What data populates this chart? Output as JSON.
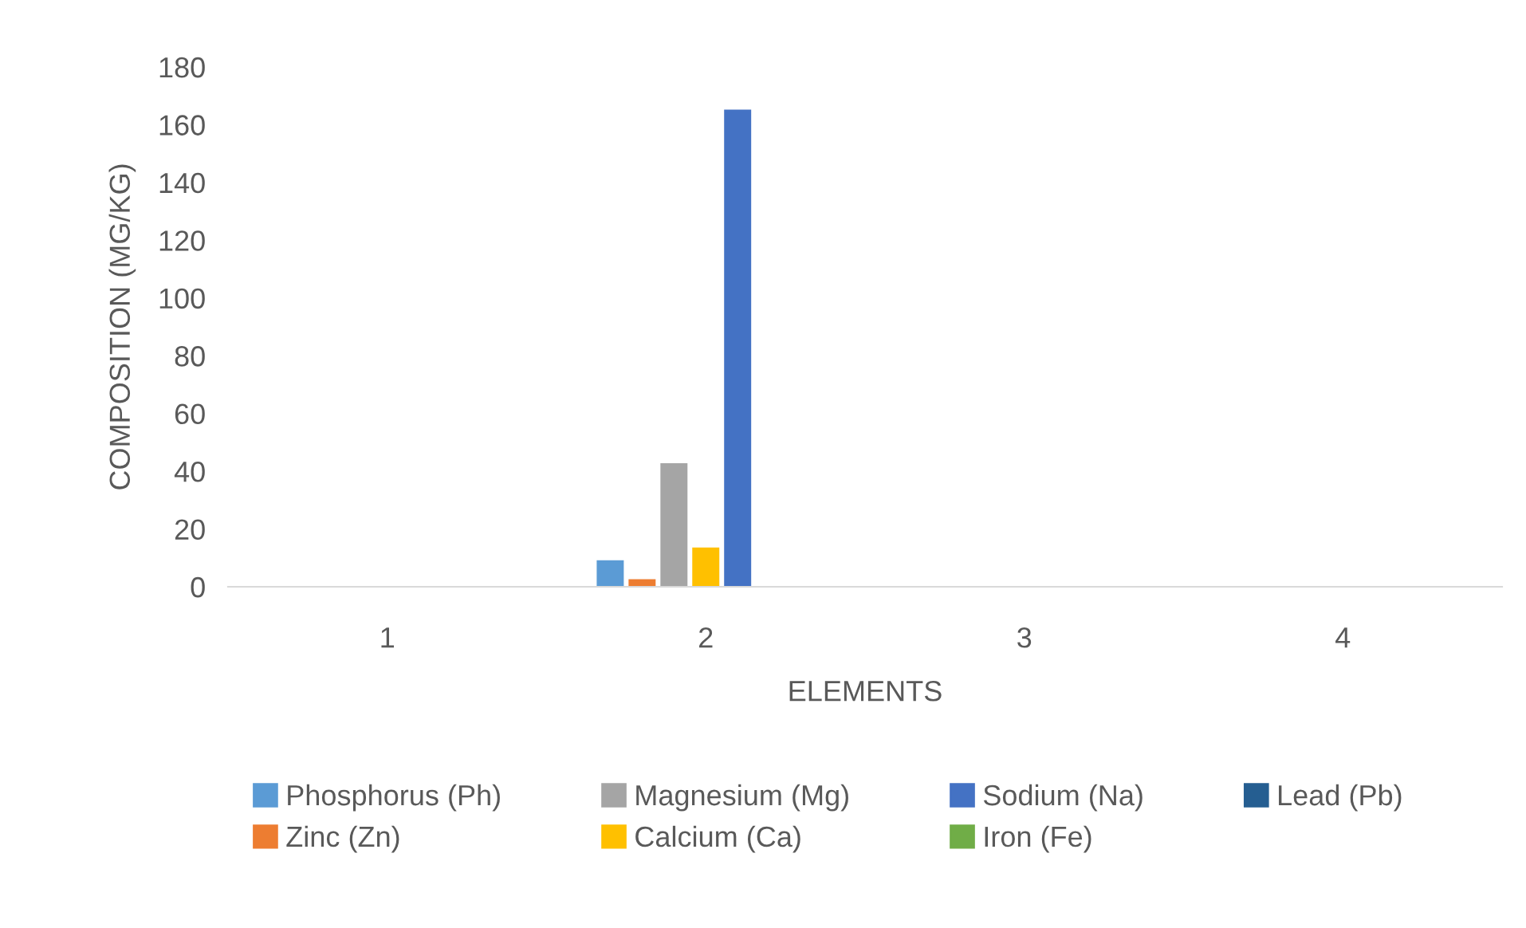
{
  "chart_data": {
    "type": "bar",
    "xlabel": "ELEMENTS",
    "ylabel": "COMPOSITION (MG/KG)",
    "categories": [
      "1",
      "2",
      "3",
      "4"
    ],
    "series": [
      {
        "name": "Phosphorus (Ph)",
        "color": "#5b9bd5",
        "values": [
          0,
          9.2,
          0,
          0
        ]
      },
      {
        "name": "Zinc (Zn)",
        "color": "#ed7d31",
        "values": [
          0,
          2.6,
          0,
          0
        ]
      },
      {
        "name": "Magnesium (Mg)",
        "color": "#a5a5a5",
        "values": [
          0,
          42.8,
          0,
          0
        ]
      },
      {
        "name": "Calcium (Ca)",
        "color": "#ffc000",
        "values": [
          0,
          13.6,
          0,
          0
        ]
      },
      {
        "name": "Sodium (Na)",
        "color": "#4472c4",
        "values": [
          0,
          165.2,
          0,
          0
        ]
      },
      {
        "name": "Iron (Fe)",
        "color": "#70ad47",
        "values": [
          0,
          0,
          0,
          0
        ]
      },
      {
        "name": "Lead (Pb)",
        "color": "#255e91",
        "values": [
          0,
          0,
          0,
          0
        ]
      }
    ],
    "ylim": [
      0,
      180
    ],
    "yticks": [
      0,
      20,
      40,
      60,
      80,
      100,
      120,
      140,
      160,
      180
    ],
    "grid": false,
    "legend": "bottom"
  }
}
